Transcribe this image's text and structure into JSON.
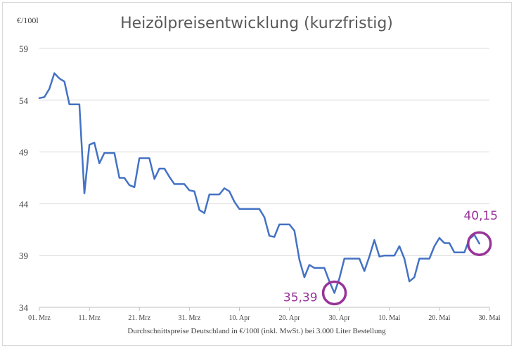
{
  "chart_data": {
    "type": "line",
    "title": "Heizölpreisentwicklung (kurzfristig)",
    "ylabel": "€/100l",
    "xlabel": "Durchschnittspreise Deutschland in €/100l (inkl. MwSt.) bei 3.000 Liter Bestellung",
    "ylim": [
      34,
      59
    ],
    "yticks": [
      "59",
      "54",
      "49",
      "44",
      "39",
      "34"
    ],
    "xlim": [
      "2020-03-01",
      "2020-05-30"
    ],
    "xticks": [
      "01. Mrz",
      "11. Mrz",
      "21. Mrz",
      "31. Mrz",
      "10. Apr",
      "20. Apr",
      "30. Apr",
      "10. Mai",
      "20. Mai",
      "30. Mai"
    ],
    "grid": true,
    "line_color": "#4472c4",
    "series": [
      {
        "x": [
          "2020-03-01",
          "2020-03-02",
          "2020-03-03",
          "2020-03-04",
          "2020-03-05",
          "2020-03-06",
          "2020-03-07",
          "2020-03-08",
          "2020-03-09",
          "2020-03-10",
          "2020-03-11",
          "2020-03-12",
          "2020-03-13",
          "2020-03-14",
          "2020-03-15",
          "2020-03-16",
          "2020-03-17",
          "2020-03-18",
          "2020-03-19",
          "2020-03-20",
          "2020-03-21",
          "2020-03-22",
          "2020-03-23",
          "2020-03-24",
          "2020-03-25",
          "2020-03-26",
          "2020-03-27",
          "2020-03-28",
          "2020-03-29",
          "2020-03-30",
          "2020-03-31",
          "2020-04-01",
          "2020-04-02",
          "2020-04-03",
          "2020-04-04",
          "2020-04-05",
          "2020-04-06",
          "2020-04-07",
          "2020-04-08",
          "2020-04-09",
          "2020-04-10",
          "2020-04-11",
          "2020-04-12",
          "2020-04-13",
          "2020-04-14",
          "2020-04-15",
          "2020-04-16",
          "2020-04-17",
          "2020-04-18",
          "2020-04-19",
          "2020-04-20",
          "2020-04-21",
          "2020-04-22",
          "2020-04-23",
          "2020-04-24",
          "2020-04-25",
          "2020-04-26",
          "2020-04-27",
          "2020-04-28",
          "2020-04-29",
          "2020-04-30",
          "2020-05-01",
          "2020-05-02",
          "2020-05-03",
          "2020-05-04",
          "2020-05-05",
          "2020-05-06",
          "2020-05-07",
          "2020-05-08",
          "2020-05-09",
          "2020-05-10",
          "2020-05-11",
          "2020-05-12",
          "2020-05-13",
          "2020-05-14",
          "2020-05-15",
          "2020-05-16",
          "2020-05-17",
          "2020-05-18",
          "2020-05-19",
          "2020-05-20",
          "2020-05-21",
          "2020-05-22",
          "2020-05-23",
          "2020-05-24",
          "2020-05-25",
          "2020-05-26",
          "2020-05-27",
          "2020-05-28"
        ],
        "values": [
          54.2,
          54.3,
          55.1,
          56.6,
          56.1,
          55.8,
          53.6,
          53.6,
          53.6,
          45.0,
          49.7,
          49.9,
          47.9,
          48.9,
          48.9,
          48.9,
          46.5,
          46.5,
          45.8,
          45.6,
          48.4,
          48.4,
          48.4,
          46.4,
          47.4,
          47.4,
          46.6,
          45.9,
          45.9,
          45.9,
          45.3,
          45.2,
          43.4,
          43.1,
          44.9,
          44.9,
          44.9,
          45.5,
          45.2,
          44.2,
          43.5,
          43.5,
          43.5,
          43.5,
          43.5,
          42.7,
          40.9,
          40.8,
          42.0,
          42.0,
          42.0,
          41.4,
          38.6,
          36.9,
          38.1,
          37.8,
          37.8,
          37.8,
          36.5,
          35.39,
          36.8,
          38.7,
          38.7,
          38.7,
          38.7,
          37.5,
          38.9,
          40.5,
          38.9,
          39.0,
          39.0,
          39.0,
          39.9,
          38.7,
          36.5,
          36.9,
          38.7,
          38.7,
          38.7,
          39.9,
          40.7,
          40.2,
          40.2,
          39.3,
          39.3,
          39.3,
          40.6,
          41.0,
          40.15
        ]
      }
    ],
    "annotations": [
      {
        "date": "2020-04-29",
        "value": 35.39,
        "text": "35,39",
        "color": "#993399"
      },
      {
        "date": "2020-05-28",
        "value": 40.15,
        "text": "40,15",
        "color": "#993399"
      }
    ]
  }
}
